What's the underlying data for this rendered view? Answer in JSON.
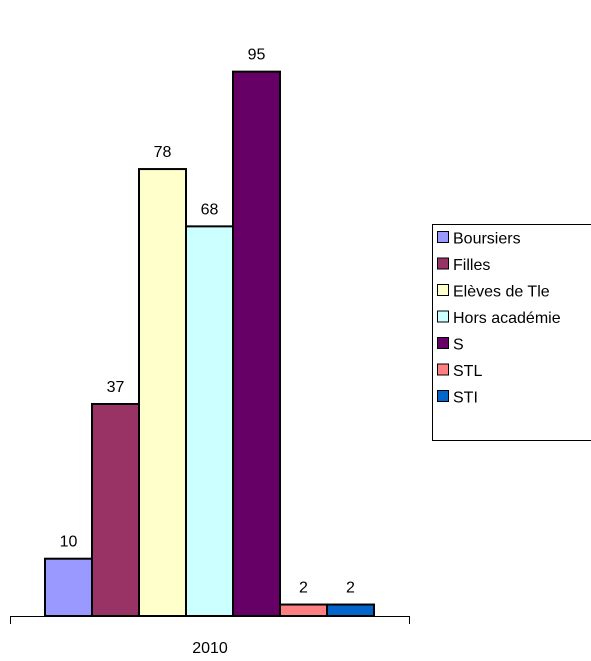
{
  "chart_data": {
    "type": "bar",
    "categories": [
      "2010"
    ],
    "series": [
      {
        "name": "Boursiers",
        "values": [
          10
        ],
        "color": "#9999FF"
      },
      {
        "name": "Filles",
        "values": [
          37
        ],
        "color": "#993366"
      },
      {
        "name": "Elèves de Tle",
        "values": [
          78
        ],
        "color": "#FFFFCC"
      },
      {
        "name": "Hors académie",
        "values": [
          68
        ],
        "color": "#CCFFFF"
      },
      {
        "name": "S",
        "values": [
          95
        ],
        "color": "#660066"
      },
      {
        "name": "STL",
        "values": [
          2
        ],
        "color": "#FF8080"
      },
      {
        "name": "STI",
        "values": [
          2
        ],
        "color": "#0066CC"
      }
    ],
    "ylim": [
      0,
      100
    ],
    "grid": false,
    "legend_position": "right",
    "data_labels": true
  }
}
